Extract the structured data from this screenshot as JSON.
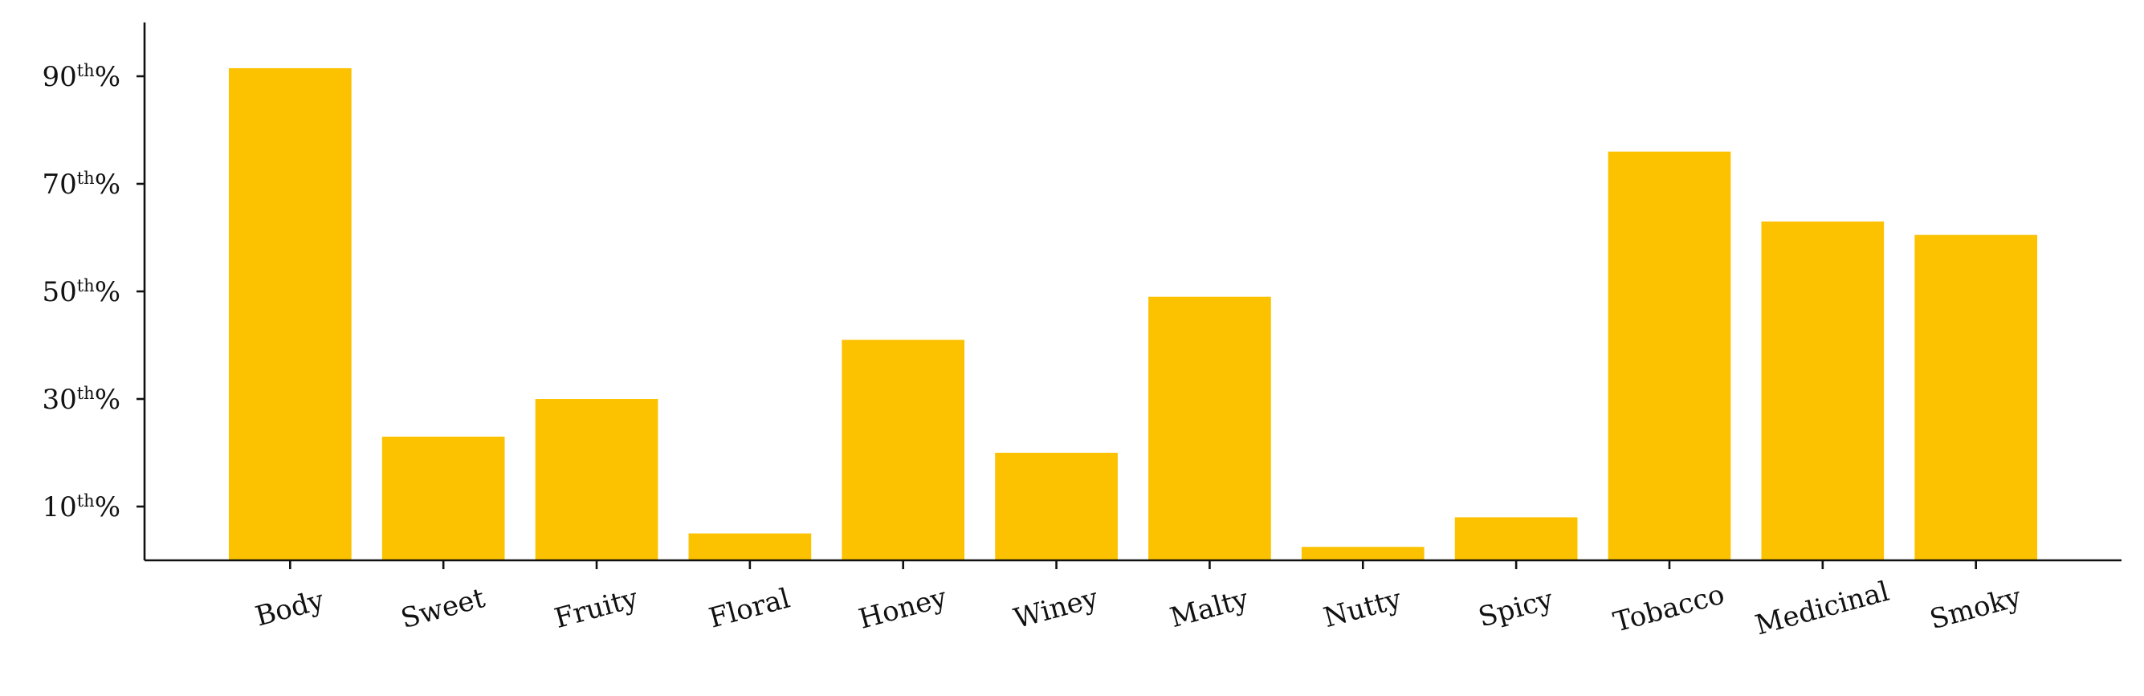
{
  "chart_data": {
    "type": "bar",
    "title": "",
    "xlabel": "",
    "ylabel": "",
    "categories": [
      "Body",
      "Sweet",
      "Fruity",
      "Floral",
      "Honey",
      "Winey",
      "Malty",
      "Nutty",
      "Spicy",
      "Tobacco",
      "Medicinal",
      "Smoky"
    ],
    "values": [
      91.5,
      23,
      30,
      5,
      41,
      20,
      49,
      2.5,
      8,
      76,
      63,
      60.5
    ],
    "ylim": [
      0,
      100
    ],
    "yticks": [
      10,
      30,
      50,
      70,
      90
    ],
    "ytick_label_parts": [
      {
        "num": "10",
        "sup": "th",
        "suffix": "%"
      },
      {
        "num": "30",
        "sup": "th",
        "suffix": "%"
      },
      {
        "num": "50",
        "sup": "th",
        "suffix": "%"
      },
      {
        "num": "70",
        "sup": "th",
        "suffix": "%"
      },
      {
        "num": "90",
        "sup": "th",
        "suffix": "%"
      }
    ],
    "bar_color": "#FCC200",
    "grid": false,
    "legend": "none",
    "xtick_rotation_deg": -15
  }
}
